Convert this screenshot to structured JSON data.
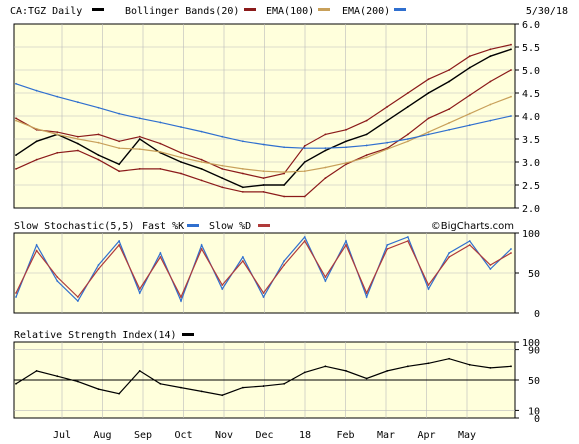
{
  "colors": {
    "background": "#ffffff",
    "panel_fill": "#ffffdc",
    "grid": "#bbbbbb",
    "price": "#000000",
    "bollinger": "#8b1a1a",
    "ema100": "#c8a05a",
    "ema200": "#2f6fcf",
    "fast_k": "#2f6fcf",
    "slow_d": "#b03a3a",
    "rsi": "#000000"
  },
  "header": {
    "symbol": "CA:TGZ Daily",
    "bollinger_label": "Bollinger Bands(20)",
    "ema100_label": "EMA(100)",
    "ema200_label": "EMA(200)",
    "date": "5/30/18"
  },
  "stochastic_panel": {
    "title": "Slow Stochastic(5,5)",
    "fast_label": "Fast %K",
    "slow_label": "Slow %D",
    "watermark": "©BigCharts.com"
  },
  "rsi_panel": {
    "title": "Relative Strength Index(14)"
  },
  "chart_data": [
    {
      "type": "line",
      "panel": "price",
      "ylim": [
        2.0,
        6.0
      ],
      "y_ticks": [
        "2.0",
        "2.5",
        "3.0",
        "3.5",
        "4.0",
        "4.5",
        "5.0",
        "5.5",
        "6.0"
      ],
      "x_ticks": [
        "Jul",
        "Aug",
        "Sep",
        "Oct",
        "Nov",
        "Dec",
        "18",
        "Feb",
        "Mar",
        "Apr",
        "May"
      ],
      "grid": true,
      "x": [
        0,
        10,
        20,
        30,
        40,
        50,
        60,
        70,
        80,
        90,
        100,
        110,
        120,
        130,
        140,
        150,
        160,
        170,
        180,
        190,
        200,
        210,
        220,
        230,
        240
      ],
      "series": [
        {
          "name": "CA:TGZ Daily",
          "values": [
            3.15,
            3.45,
            3.6,
            3.4,
            3.15,
            2.95,
            3.5,
            3.2,
            3.0,
            2.85,
            2.65,
            2.45,
            2.5,
            2.5,
            3.0,
            3.25,
            3.45,
            3.6,
            3.9,
            4.2,
            4.5,
            4.75,
            5.05,
            5.3,
            5.45
          ]
        },
        {
          "name": "Bollinger Bands(20) upper",
          "values": [
            3.95,
            3.7,
            3.65,
            3.55,
            3.6,
            3.45,
            3.55,
            3.4,
            3.2,
            3.05,
            2.85,
            2.75,
            2.65,
            2.75,
            3.35,
            3.6,
            3.7,
            3.9,
            4.2,
            4.5,
            4.8,
            5.0,
            5.3,
            5.45,
            5.55
          ]
        },
        {
          "name": "Bollinger Bands(20) lower",
          "values": [
            2.85,
            3.05,
            3.2,
            3.25,
            3.05,
            2.8,
            2.85,
            2.85,
            2.75,
            2.6,
            2.45,
            2.35,
            2.35,
            2.25,
            2.25,
            2.65,
            2.95,
            3.15,
            3.3,
            3.6,
            3.95,
            4.15,
            4.45,
            4.75,
            5.0
          ]
        },
        {
          "name": "EMA(100)",
          "values": [
            3.9,
            3.72,
            3.6,
            3.5,
            3.42,
            3.3,
            3.28,
            3.22,
            3.1,
            3.0,
            2.92,
            2.85,
            2.8,
            2.78,
            2.8,
            2.88,
            2.98,
            3.1,
            3.28,
            3.45,
            3.65,
            3.85,
            4.05,
            4.25,
            4.42
          ]
        },
        {
          "name": "EMA(200)",
          "values": [
            4.7,
            4.55,
            4.42,
            4.3,
            4.18,
            4.05,
            3.95,
            3.86,
            3.76,
            3.66,
            3.55,
            3.45,
            3.38,
            3.32,
            3.3,
            3.3,
            3.32,
            3.36,
            3.42,
            3.5,
            3.6,
            3.7,
            3.8,
            3.9,
            4.0
          ]
        }
      ]
    },
    {
      "type": "line",
      "panel": "stochastic",
      "ylim": [
        0,
        100
      ],
      "y_ticks": [
        "0",
        "50",
        "100"
      ],
      "grid": true,
      "x": [
        0,
        10,
        20,
        30,
        40,
        50,
        60,
        70,
        80,
        90,
        100,
        110,
        120,
        130,
        140,
        150,
        160,
        170,
        180,
        190,
        200,
        210,
        220,
        230,
        240
      ],
      "series": [
        {
          "name": "Fast %K",
          "values": [
            20,
            85,
            40,
            15,
            60,
            90,
            25,
            75,
            15,
            85,
            30,
            70,
            20,
            65,
            95,
            40,
            90,
            20,
            85,
            95,
            30,
            75,
            90,
            55,
            80
          ]
        },
        {
          "name": "Slow %D",
          "values": [
            25,
            78,
            45,
            20,
            55,
            85,
            30,
            70,
            20,
            80,
            35,
            65,
            25,
            60,
            90,
            45,
            85,
            25,
            80,
            90,
            35,
            70,
            85,
            60,
            75
          ]
        }
      ]
    },
    {
      "type": "line",
      "panel": "rsi",
      "ylim": [
        0,
        100
      ],
      "y_ticks": [
        "0",
        "10",
        "50",
        "90",
        "100"
      ],
      "reference_line": 50,
      "grid": true,
      "x": [
        0,
        10,
        20,
        30,
        40,
        50,
        60,
        70,
        80,
        90,
        100,
        110,
        120,
        130,
        140,
        150,
        160,
        170,
        180,
        190,
        200,
        210,
        220,
        230,
        240
      ],
      "series": [
        {
          "name": "Relative Strength Index(14)",
          "values": [
            45,
            62,
            55,
            48,
            38,
            32,
            62,
            45,
            40,
            35,
            30,
            40,
            42,
            45,
            60,
            68,
            62,
            52,
            62,
            68,
            72,
            78,
            70,
            66,
            68
          ]
        }
      ]
    }
  ]
}
